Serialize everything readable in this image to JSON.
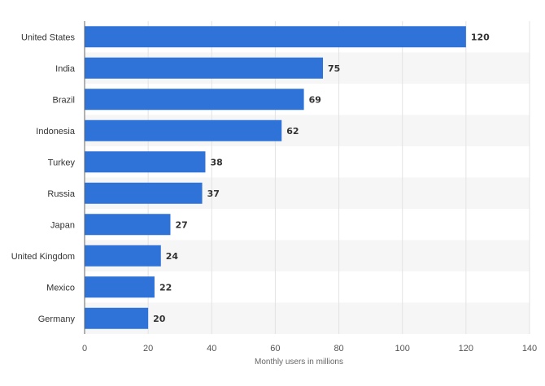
{
  "chart_data": {
    "type": "bar",
    "orientation": "horizontal",
    "categories": [
      "United States",
      "India",
      "Brazil",
      "Indonesia",
      "Turkey",
      "Russia",
      "Japan",
      "United Kingdom",
      "Mexico",
      "Germany"
    ],
    "values": [
      120,
      75,
      69,
      62,
      38,
      37,
      27,
      24,
      22,
      20
    ],
    "xlabel": "Monthly users in millions",
    "ylabel": "",
    "xlim": [
      0,
      140
    ],
    "xticks": [
      0,
      20,
      40,
      60,
      80,
      100,
      120,
      140
    ],
    "grid": "vertical",
    "data_labels": true,
    "bar_color": "#2f73d8"
  },
  "colors": {
    "bar": "#2f73d8",
    "grid": "#e3e3e3",
    "band": "#f6f6f6",
    "axis": "#666666",
    "text": "#333333"
  }
}
